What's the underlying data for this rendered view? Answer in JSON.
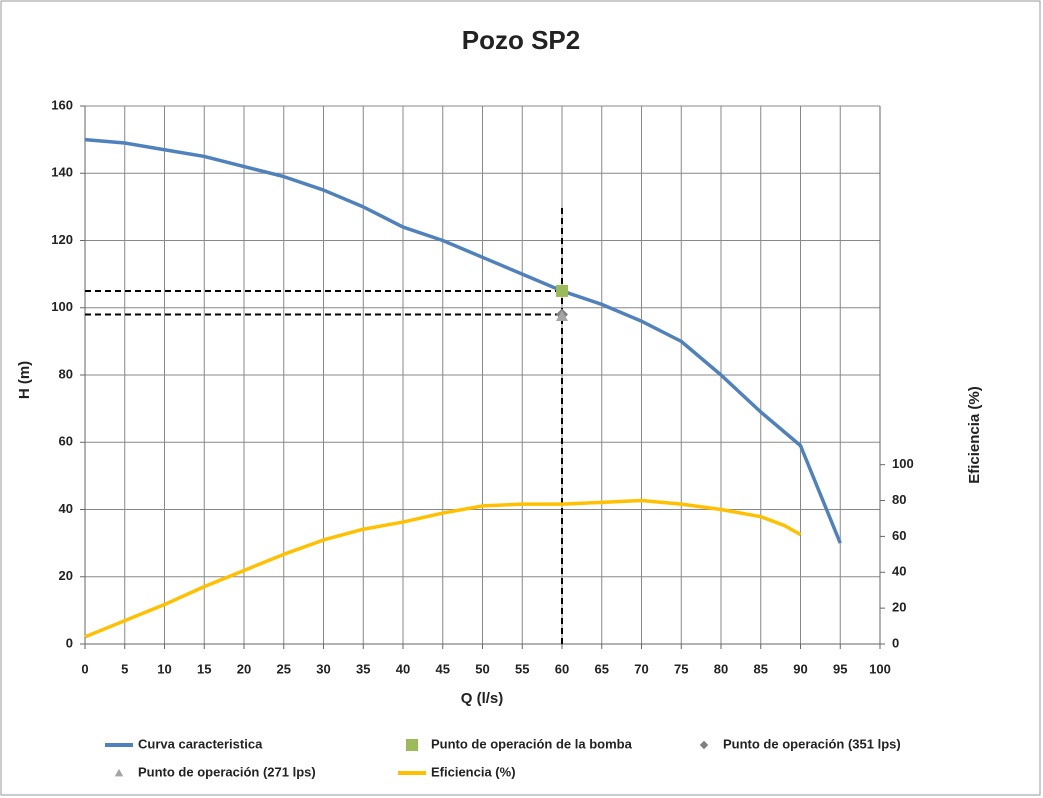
{
  "chart_data": {
    "type": "line",
    "title": "Pozo SP2",
    "x_label": "Q (l/s)",
    "y_label": "H (m)",
    "y2_label": "Eficiencia (%)",
    "xlim": [
      0,
      100
    ],
    "xticks": [
      0,
      5,
      10,
      15,
      20,
      25,
      30,
      35,
      40,
      45,
      50,
      55,
      60,
      65,
      70,
      75,
      80,
      85,
      90,
      95,
      100
    ],
    "ylim": [
      0,
      160
    ],
    "yticks": [
      0,
      20,
      40,
      60,
      80,
      100,
      120,
      140,
      160
    ],
    "y2lim": [
      0,
      300
    ],
    "y2ticks": [
      0,
      20,
      40,
      60,
      80,
      100
    ],
    "grid": true,
    "legend": "bottom",
    "series": [
      {
        "name": "Curva caracteristica",
        "type": "line",
        "color": "#4f81bd",
        "x": [
          0,
          5,
          10,
          15,
          20,
          25,
          30,
          35,
          40,
          45,
          50,
          55,
          60,
          65,
          70,
          75,
          80,
          85,
          90,
          95
        ],
        "values": [
          150,
          149,
          147,
          145,
          142,
          139,
          135,
          130,
          124,
          120,
          115,
          110,
          105,
          101,
          96,
          90,
          80,
          69,
          59,
          30
        ]
      },
      {
        "name": "Punto de operación de la bomba",
        "type": "scatter",
        "marker": "square",
        "color": "#9bbb59",
        "x": [
          60
        ],
        "values": [
          105
        ]
      },
      {
        "name": "Punto de operación (351 lps)",
        "type": "scatter",
        "marker": "diamond",
        "color": "#7f7f7f",
        "x": [
          60
        ],
        "values": [
          98
        ]
      },
      {
        "name": "Punto de operación (271 lps)",
        "type": "scatter",
        "marker": "triangle",
        "color": "#a5a5a5",
        "x": [
          60
        ],
        "values": [
          97.5
        ]
      },
      {
        "name": "Eficiencia (%)",
        "type": "line",
        "color": "#ffc000",
        "axis": "y2",
        "x": [
          0,
          5,
          10,
          15,
          20,
          25,
          30,
          35,
          40,
          45,
          50,
          55,
          60,
          65,
          70,
          75,
          80,
          85,
          88,
          90
        ],
        "values": [
          4,
          13,
          22,
          32,
          41,
          50,
          58,
          64,
          68,
          73,
          77,
          78,
          78,
          79,
          80,
          78,
          75,
          71,
          66,
          61
        ]
      }
    ]
  }
}
